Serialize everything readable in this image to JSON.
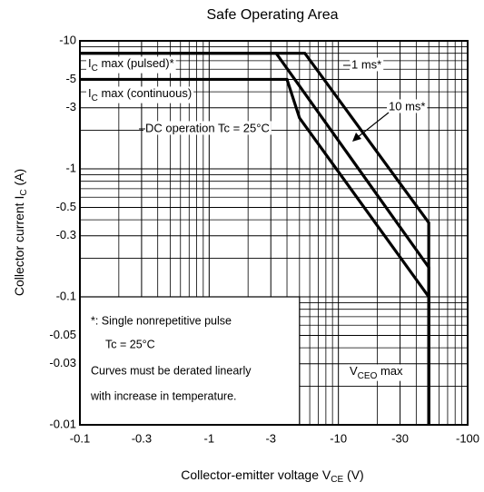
{
  "chart_data": {
    "type": "line",
    "title": "Safe Operating Area",
    "x_label": {
      "main": "Collector-emitter voltage  V",
      "sub": "CE",
      "text": "  (V)"
    },
    "y_label": {
      "main": "Collector current  I",
      "sub": "C",
      "text": "  (A)"
    },
    "log_x": true,
    "log_y": true,
    "grid": true,
    "color": "#000000",
    "xlim": [
      -0.1,
      -100
    ],
    "ylim": [
      -0.01,
      -10
    ],
    "xticks": [
      -0.1,
      -0.3,
      -1,
      -3,
      -10,
      -30,
      -100
    ],
    "yticks": [
      -0.01,
      -0.03,
      -0.05,
      -0.1,
      -0.3,
      -0.5,
      -1,
      -3,
      -5,
      -10
    ],
    "xminorticks": [
      -0.2,
      -0.4,
      -0.5,
      -0.6,
      -0.7,
      -0.8,
      -0.9,
      -2,
      -4,
      -5,
      -6,
      -7,
      -8,
      -9,
      -20,
      -40,
      -50,
      -60,
      -70,
      -80,
      -90
    ],
    "yminorticks": [
      -9,
      -8,
      -7,
      -6,
      -4,
      -2,
      -0.9,
      -0.8,
      -0.7,
      -0.6,
      -0.4,
      -0.2,
      -0.09,
      -0.08,
      -0.07,
      -0.06,
      -0.04,
      -0.02
    ],
    "series": [
      {
        "name": "1 ms*",
        "color": "#000000",
        "x": [
          -0.1,
          -5.5,
          -50,
          -50
        ],
        "values": [
          -8,
          -8,
          -0.38,
          -0.01
        ]
      },
      {
        "name": "10 ms*",
        "color": "#000000",
        "x": [
          -0.1,
          -3.3,
          -50,
          -50
        ],
        "values": [
          -8,
          -8,
          -0.17,
          -0.01
        ]
      },
      {
        "name": "DC operation Tc = 25°C",
        "color": "#000000",
        "x": [
          -0.1,
          -4,
          -5,
          -50,
          -50
        ],
        "values": [
          -5,
          -5,
          -2.5,
          -0.1,
          -0.01
        ]
      }
    ],
    "annotations": [
      {
        "main": "I",
        "sub": "C",
        "text": " max (pulsed)*"
      },
      {
        "main": "I",
        "sub": "C",
        "text": " max (continuous)"
      },
      {
        "main": "V",
        "sub": "CEO",
        "text": " max"
      }
    ],
    "note": {
      "lines": [
        "*: Single nonrepetitive pulse",
        "Tc = 25°C",
        "Curves must be derated linearly",
        "with increase in temperature."
      ]
    }
  }
}
